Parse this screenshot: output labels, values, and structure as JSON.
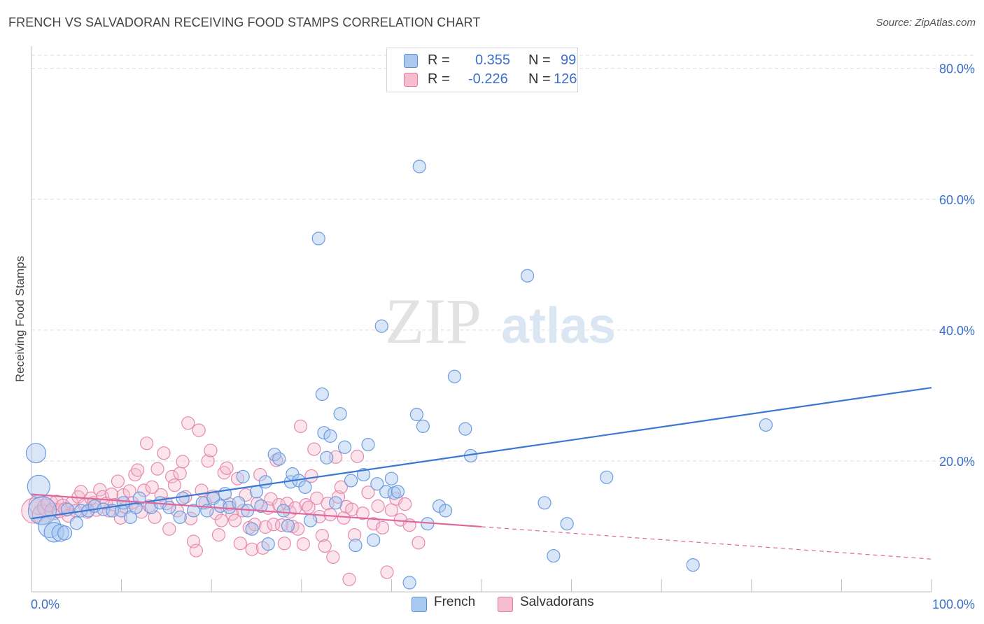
{
  "title": "FRENCH VS SALVADORAN RECEIVING FOOD STAMPS CORRELATION CHART",
  "source": "Source: ZipAtlas.com",
  "watermark": {
    "zip": "ZIP",
    "atlas": "atlas"
  },
  "legend": {
    "r_label": "R =",
    "n_label": "N =",
    "rows": [
      {
        "series": "French",
        "r": "0.355",
        "n": "99",
        "color": "#a9c8ef",
        "border": "#5b8fd6"
      },
      {
        "series": "Salvadorans",
        "r": "-0.226",
        "n": "126",
        "color": "#f6bcd0",
        "border": "#e27aa0"
      }
    ]
  },
  "chart_data": {
    "type": "scatter",
    "title": "FRENCH VS SALVADORAN RECEIVING FOOD STAMPS CORRELATION CHART",
    "xlabel": "",
    "ylabel": "Receiving Food Stamps",
    "xlim": [
      0,
      100
    ],
    "ylim": [
      0,
      82
    ],
    "x_tick_labels": [
      "0.0%",
      "100.0%"
    ],
    "y_ticks": [
      20,
      40,
      60,
      80
    ],
    "y_tick_labels": [
      "20.0%",
      "40.0%",
      "60.0%",
      "80.0%"
    ],
    "grid": true,
    "legend_position": "top-center",
    "colors": {
      "French": "#3a78d4",
      "Salvadorans": "#e0679a"
    },
    "series": [
      {
        "name": "French",
        "r": 0.355,
        "n": 99,
        "trend": {
          "x": [
            0,
            100
          ],
          "y": [
            11.2,
            31.2
          ],
          "dashed_from": null
        },
        "points": [
          [
            0.5,
            21.2,
            14
          ],
          [
            0.8,
            16.1,
            16
          ],
          [
            1.2,
            12.4,
            20
          ],
          [
            2,
            10.0,
            16
          ],
          [
            2.5,
            9.1,
            14
          ],
          [
            3.2,
            9.0,
            12
          ],
          [
            3.7,
            9.0,
            10
          ],
          [
            4,
            12.6,
            9
          ],
          [
            5,
            10.5,
            9
          ],
          [
            5.5,
            12.4,
            9
          ],
          [
            6.3,
            12.4,
            9
          ],
          [
            7,
            13.1,
            9
          ],
          [
            8,
            12.6,
            9
          ],
          [
            9,
            12.4,
            9
          ],
          [
            10,
            12.4,
            9
          ],
          [
            10.2,
            13.6,
            9
          ],
          [
            11,
            11.4,
            9
          ],
          [
            11.6,
            12.9,
            9
          ],
          [
            12,
            14.3,
            9
          ],
          [
            13.3,
            12.9,
            9
          ],
          [
            14.3,
            13.6,
            9
          ],
          [
            15.3,
            12.9,
            9
          ],
          [
            16.5,
            11.4,
            9
          ],
          [
            16.8,
            14.3,
            9
          ],
          [
            18,
            12.4,
            9
          ],
          [
            19,
            13.6,
            9
          ],
          [
            19.5,
            12.4,
            9
          ],
          [
            20.2,
            14.3,
            9
          ],
          [
            21,
            13.1,
            9
          ],
          [
            21.5,
            15.0,
            9
          ],
          [
            22,
            12.9,
            9
          ],
          [
            23,
            13.6,
            9
          ],
          [
            23.5,
            17.6,
            9
          ],
          [
            24,
            12.4,
            9
          ],
          [
            24.5,
            9.6,
            9
          ],
          [
            25,
            15.3,
            9
          ],
          [
            25.5,
            13.1,
            9
          ],
          [
            26,
            16.8,
            9
          ],
          [
            26.3,
            7.3,
            9
          ],
          [
            27,
            21.0,
            9
          ],
          [
            27.5,
            20.3,
            9
          ],
          [
            28,
            12.4,
            9
          ],
          [
            28.5,
            10.1,
            9
          ],
          [
            28.8,
            16.8,
            9
          ],
          [
            29,
            18.0,
            9
          ],
          [
            29.7,
            17.0,
            9
          ],
          [
            30.4,
            16.0,
            9
          ],
          [
            31,
            10.9,
            9
          ],
          [
            31.9,
            54.0,
            9
          ],
          [
            32.3,
            30.2,
            9
          ],
          [
            32.5,
            24.3,
            9
          ],
          [
            32.8,
            20.5,
            9
          ],
          [
            33.2,
            23.8,
            9
          ],
          [
            33.8,
            13.6,
            9
          ],
          [
            34.3,
            27.2,
            9
          ],
          [
            34.8,
            22.1,
            9
          ],
          [
            35.5,
            17.0,
            9
          ],
          [
            36,
            7.1,
            9
          ],
          [
            36.9,
            17.9,
            9
          ],
          [
            37.4,
            22.5,
            9
          ],
          [
            38,
            7.9,
            9
          ],
          [
            38.4,
            16.5,
            9
          ],
          [
            38.9,
            40.6,
            9
          ],
          [
            39.4,
            15.3,
            9
          ],
          [
            40,
            17.3,
            9
          ],
          [
            40.3,
            15.1,
            9
          ],
          [
            40.7,
            15.3,
            9
          ],
          [
            42,
            1.4,
            9
          ],
          [
            42.8,
            27.1,
            9
          ],
          [
            43.1,
            65.0,
            9
          ],
          [
            43.5,
            25.3,
            9
          ],
          [
            44,
            10.4,
            9
          ],
          [
            45.3,
            13.1,
            9
          ],
          [
            46,
            12.4,
            9
          ],
          [
            47,
            32.9,
            9
          ],
          [
            48.2,
            24.9,
            9
          ],
          [
            48.8,
            20.8,
            9
          ],
          [
            55.1,
            48.3,
            9
          ],
          [
            57,
            13.6,
            9
          ],
          [
            58,
            5.5,
            9
          ],
          [
            59.5,
            10.4,
            9
          ],
          [
            63.9,
            17.5,
            9
          ],
          [
            73.5,
            4.1,
            9
          ],
          [
            81.6,
            25.5,
            9
          ]
        ]
      },
      {
        "name": "Salvadorans",
        "r": -0.226,
        "n": 126,
        "trend": {
          "x": [
            0,
            100
          ],
          "y": [
            14.9,
            5.0
          ],
          "dashed_from": 50
        },
        "points": [
          [
            0.3,
            12.4,
            18
          ],
          [
            0.8,
            13.3,
            14
          ],
          [
            1.2,
            11.8,
            14
          ],
          [
            1.6,
            12.9,
            12
          ],
          [
            2,
            13.5,
            12
          ],
          [
            2.4,
            12.3,
            12
          ],
          [
            2.8,
            13.7,
            10
          ],
          [
            3.1,
            12.4,
            10
          ],
          [
            3.5,
            13.1,
            10
          ],
          [
            3.8,
            12.6,
            10
          ],
          [
            4.1,
            11.6,
            9
          ],
          [
            4.5,
            13.6,
            9
          ],
          [
            4.9,
            12.4,
            9
          ],
          [
            5.2,
            14.5,
            9
          ],
          [
            5.5,
            15.3,
            9
          ],
          [
            5.9,
            13.3,
            9
          ],
          [
            6.2,
            12.2,
            9
          ],
          [
            6.6,
            14.3,
            9
          ],
          [
            6.9,
            13.6,
            9
          ],
          [
            7.2,
            12.5,
            9
          ],
          [
            7.6,
            15.6,
            9
          ],
          [
            7.9,
            14.5,
            9
          ],
          [
            8.3,
            13.5,
            9
          ],
          [
            8.6,
            12.4,
            9
          ],
          [
            8.9,
            14.9,
            9
          ],
          [
            9.2,
            13.3,
            9
          ],
          [
            9.6,
            16.9,
            9
          ],
          [
            9.9,
            11.3,
            9
          ],
          [
            10.2,
            14.8,
            9
          ],
          [
            10.5,
            12.9,
            9
          ],
          [
            10.9,
            15.4,
            9
          ],
          [
            11.2,
            13.6,
            9
          ],
          [
            11.5,
            17.9,
            9
          ],
          [
            11.8,
            18.6,
            9
          ],
          [
            12.2,
            12.2,
            9
          ],
          [
            12.5,
            15.5,
            9
          ],
          [
            12.8,
            22.7,
            9
          ],
          [
            13.1,
            13.1,
            9
          ],
          [
            13.4,
            16.0,
            9
          ],
          [
            13.7,
            11.4,
            9
          ],
          [
            14.0,
            18.8,
            9
          ],
          [
            14.4,
            14.8,
            9
          ],
          [
            14.7,
            21.2,
            9
          ],
          [
            15.0,
            13.5,
            9
          ],
          [
            15.3,
            9.6,
            9
          ],
          [
            15.6,
            17.6,
            9
          ],
          [
            15.9,
            16.3,
            9
          ],
          [
            16.2,
            12.4,
            9
          ],
          [
            16.5,
            18.1,
            9
          ],
          [
            16.8,
            19.9,
            9
          ],
          [
            17.1,
            14.5,
            9
          ],
          [
            17.4,
            25.8,
            9
          ],
          [
            17.7,
            11.2,
            9
          ],
          [
            18.0,
            7.7,
            9
          ],
          [
            18.3,
            6.3,
            9
          ],
          [
            18.6,
            24.7,
            9
          ],
          [
            18.9,
            15.5,
            9
          ],
          [
            19.3,
            13.6,
            9
          ],
          [
            19.6,
            20.0,
            9
          ],
          [
            19.9,
            21.6,
            9
          ],
          [
            20.2,
            14.6,
            9
          ],
          [
            20.5,
            12.0,
            9
          ],
          [
            20.8,
            8.7,
            9
          ],
          [
            21.1,
            10.9,
            9
          ],
          [
            21.4,
            18.2,
            9
          ],
          [
            21.7,
            18.9,
            9
          ],
          [
            22.0,
            13.4,
            9
          ],
          [
            22.3,
            11.9,
            9
          ],
          [
            22.6,
            10.9,
            9
          ],
          [
            22.9,
            17.3,
            9
          ],
          [
            23.2,
            7.4,
            9
          ],
          [
            23.5,
            12.4,
            9
          ],
          [
            23.8,
            14.8,
            9
          ],
          [
            24.2,
            9.8,
            9
          ],
          [
            24.5,
            6.5,
            9
          ],
          [
            24.8,
            10.3,
            9
          ],
          [
            25.1,
            13.5,
            9
          ],
          [
            25.4,
            17.9,
            9
          ],
          [
            25.7,
            6.7,
            9
          ],
          [
            26.0,
            9.9,
            9
          ],
          [
            26.3,
            12.8,
            9
          ],
          [
            26.6,
            14.2,
            9
          ],
          [
            26.9,
            10.3,
            9
          ],
          [
            27.2,
            20.1,
            9
          ],
          [
            27.5,
            13.3,
            9
          ],
          [
            27.8,
            10.2,
            9
          ],
          [
            28.1,
            7.4,
            9
          ],
          [
            28.4,
            13.5,
            9
          ],
          [
            28.7,
            12.2,
            9
          ],
          [
            29.0,
            10.0,
            9
          ],
          [
            29.3,
            12.8,
            9
          ],
          [
            29.6,
            9.6,
            9
          ],
          [
            29.9,
            25.3,
            9
          ],
          [
            30.2,
            7.3,
            9
          ],
          [
            30.5,
            13.3,
            9
          ],
          [
            30.8,
            12.9,
            9
          ],
          [
            31.1,
            17.7,
            9
          ],
          [
            31.4,
            21.8,
            9
          ],
          [
            31.7,
            14.3,
            9
          ],
          [
            32.0,
            11.5,
            9
          ],
          [
            32.3,
            8.6,
            9
          ],
          [
            32.6,
            7.0,
            9
          ],
          [
            32.9,
            13.5,
            9
          ],
          [
            33.2,
            11.8,
            9
          ],
          [
            33.5,
            5.3,
            9
          ],
          [
            33.8,
            20.6,
            9
          ],
          [
            34.1,
            14.5,
            9
          ],
          [
            34.4,
            16.0,
            9
          ],
          [
            34.7,
            11.3,
            9
          ],
          [
            35.0,
            13.0,
            9
          ],
          [
            35.3,
            1.9,
            9
          ],
          [
            35.6,
            12.6,
            9
          ],
          [
            35.9,
            8.7,
            9
          ],
          [
            36.2,
            20.7,
            9
          ],
          [
            36.8,
            12.0,
            9
          ],
          [
            37.4,
            15.2,
            9
          ],
          [
            38.0,
            10.4,
            9
          ],
          [
            38.5,
            13.1,
            9
          ],
          [
            39.0,
            9.8,
            9
          ],
          [
            39.5,
            3.0,
            9
          ],
          [
            40.0,
            12.5,
            9
          ],
          [
            40.5,
            14.2,
            9
          ],
          [
            41.0,
            11.0,
            9
          ],
          [
            41.5,
            13.4,
            9
          ],
          [
            42.0,
            10.2,
            9
          ],
          [
            43.0,
            7.5,
            9
          ]
        ]
      }
    ]
  }
}
